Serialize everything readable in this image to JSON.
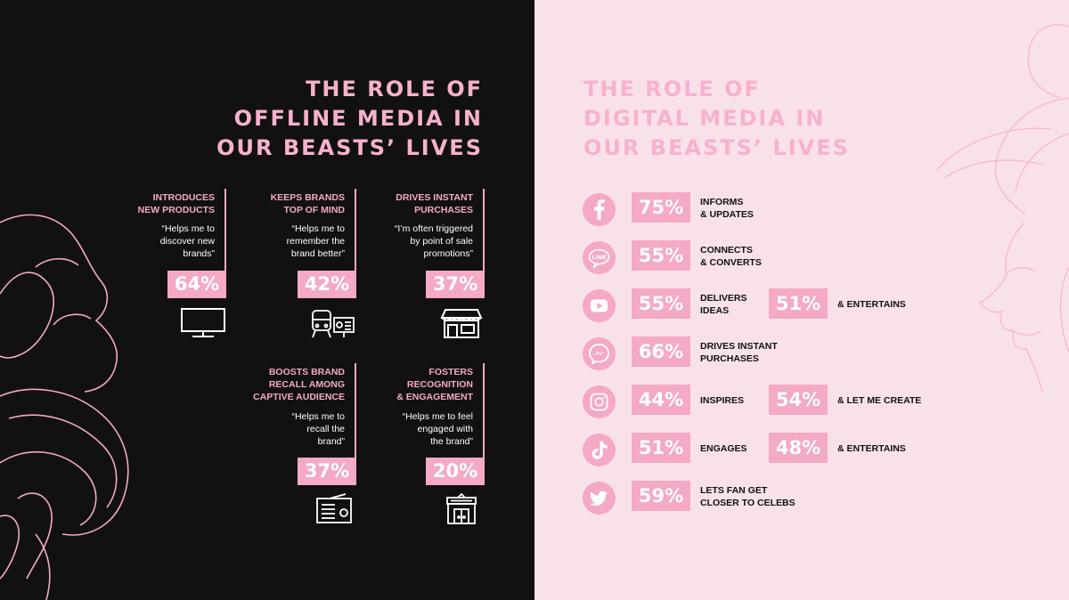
{
  "offline": {
    "title": [
      "THE ROLE OF",
      "OFFLINE MEDIA IN",
      "OUR BEASTS’ LIVES"
    ],
    "cards": [
      {
        "head": [
          "INTRODUCES",
          "NEW PRODUCTS"
        ],
        "quote": [
          "“Helps me to",
          "discover new",
          "brands”"
        ],
        "pct": "64%",
        "icon": "tv-icon"
      },
      {
        "head": [
          "KEEPS BRANDS",
          "TOP OF MIND"
        ],
        "quote": [
          "“Helps me to",
          "remember the",
          "brand better”"
        ],
        "pct": "42%",
        "icon": "transit-billboard-icon"
      },
      {
        "head": [
          "DRIVES INSTANT",
          "PURCHASES"
        ],
        "quote": [
          "“I’m often triggered",
          "by point of sale",
          "promotions”"
        ],
        "pct": "37%",
        "icon": "storefront-icon"
      },
      {
        "head": [
          "BOOSTS BRAND",
          "RECALL AMONG",
          "CAPTIVE AUDIENCE"
        ],
        "quote": [
          "“Helps me to",
          "recall the",
          "brand”"
        ],
        "pct": "37%",
        "icon": "radio-icon"
      },
      {
        "head": [
          "FOSTERS",
          "RECOGNITION",
          "& ENGAGEMENT"
        ],
        "quote": [
          "“Helps me to feel",
          "engaged with",
          "the brand”"
        ],
        "pct": "20%",
        "icon": "cinema-icon"
      }
    ]
  },
  "digital": {
    "title": [
      "THE ROLE OF",
      "DIGITAL MEDIA IN",
      "OUR BEASTS’ LIVES"
    ],
    "rows": [
      {
        "platform": "facebook",
        "icon": "facebook-icon",
        "pct": "75%",
        "label": [
          "INFORMS",
          "& UPDATES"
        ]
      },
      {
        "platform": "line",
        "icon": "line-icon",
        "icon_text": "LINE",
        "pct": "55%",
        "label": [
          "CONNECTS",
          "& CONVERTS"
        ]
      },
      {
        "platform": "youtube",
        "icon": "youtube-icon",
        "pct": "55%",
        "label": [
          "DELIVERS",
          "IDEAS"
        ],
        "pct2": "51%",
        "label2": "& ENTERTAINS"
      },
      {
        "platform": "messenger",
        "icon": "messenger-icon",
        "pct": "66%",
        "label": [
          "DRIVES INSTANT",
          "PURCHASES"
        ]
      },
      {
        "platform": "instagram",
        "icon": "instagram-icon",
        "pct": "44%",
        "label": [
          "INSPIRES"
        ],
        "pct2": "54%",
        "label2": "& LET ME CREATE"
      },
      {
        "platform": "tiktok",
        "icon": "tiktok-icon",
        "pct": "51%",
        "label": [
          "ENGAGES"
        ],
        "pct2": "48%",
        "label2": "& ENTERTAINS"
      },
      {
        "platform": "twitter",
        "icon": "twitter-icon",
        "pct": "59%",
        "label": [
          "LETS FAN GET",
          "CLOSER TO CELEBS"
        ]
      }
    ]
  },
  "colors": {
    "pink": "#f4a9c6",
    "dark": "#111111",
    "light_pink": "#f9e1ea",
    "white": "#ffffff"
  }
}
